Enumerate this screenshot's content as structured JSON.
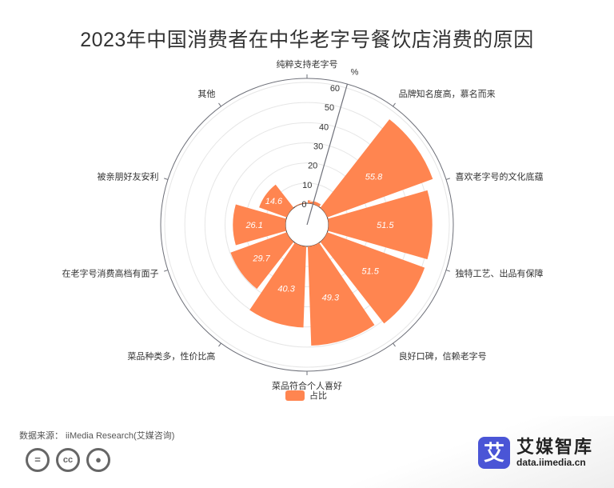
{
  "title": "2023年中国消费者在中华老字号餐饮店消费的原因",
  "source": "数据来源： iiMedia Research(艾媒咨询)",
  "brand": {
    "logo_char": "艾",
    "name": "艾媒智库",
    "url": "data.iimedia.cn"
  },
  "cc_icons": [
    "equal-icon",
    "cc-icon",
    "person-icon"
  ],
  "colors": {
    "bar": "#ff8550",
    "axis": "#6e7079",
    "grid": "#e6e6e6"
  },
  "chart_data": {
    "type": "bar",
    "subtype": "polar",
    "categories": [
      "纯粹支持老字号",
      "品牌知名度高，慕名而来",
      "喜欢老字号的文化底蕴",
      "独特工艺、出品有保障",
      "良好口碑，信赖老字号",
      "菜品符合个人喜好",
      "菜品种类多，性价比高",
      "在老字号消费高档有面子",
      "被亲朋好友安利",
      "其他"
    ],
    "series": [
      {
        "name": "占比",
        "values": [
          1.5,
          55.8,
          51.5,
          51.5,
          49.3,
          40.3,
          29.7,
          26.1,
          14.6,
          0.3
        ]
      }
    ],
    "radial_axis": {
      "unit": "%",
      "ticks": [
        0,
        10,
        20,
        30,
        40,
        50,
        60
      ],
      "range": [
        0,
        60
      ]
    },
    "legend_position": "bottom",
    "grid": true
  }
}
